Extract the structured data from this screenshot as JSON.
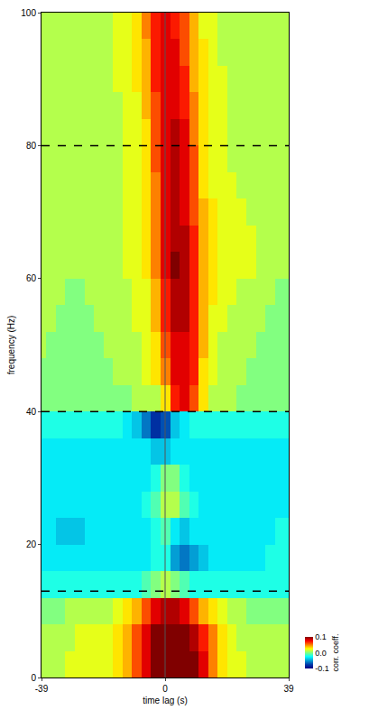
{
  "chart_data": {
    "type": "heatmap",
    "x_label": "time lag (s)",
    "y_label": "frequency (Hz)",
    "xlim": [
      -39,
      39
    ],
    "xticks": [
      -39,
      0,
      39
    ],
    "ylim": [
      0,
      100
    ],
    "yticks": [
      0,
      20,
      40,
      60,
      80,
      100
    ],
    "x": [
      -39,
      -36,
      -33,
      -30,
      -27,
      -24,
      -21,
      -18,
      -15,
      -12,
      -9,
      -6,
      -3,
      0,
      3,
      6,
      9,
      12,
      15,
      18,
      21,
      24,
      27,
      30,
      33,
      36,
      39
    ],
    "y": [
      2,
      6,
      10,
      14,
      18,
      22,
      26,
      30,
      34,
      38,
      42,
      46,
      50,
      54,
      58,
      62,
      66,
      70,
      74,
      78,
      82,
      86,
      90,
      94,
      98
    ],
    "z": [
      [
        0.01,
        0.01,
        0.01,
        0.02,
        0.02,
        0.02,
        0.02,
        0.02,
        0.03,
        0.04,
        0.06,
        0.08,
        0.1,
        0.1,
        0.1,
        0.1,
        0.1,
        0.08,
        0.05,
        0.03,
        0.02,
        0.02,
        0.01,
        0.01,
        0.01,
        0.01,
        0.01
      ],
      [
        0.01,
        0.01,
        0.01,
        0.01,
        0.02,
        0.02,
        0.02,
        0.02,
        0.03,
        0.04,
        0.06,
        0.08,
        0.1,
        0.1,
        0.1,
        0.1,
        0.09,
        0.07,
        0.05,
        0.03,
        0.02,
        0.01,
        0.01,
        0.01,
        0.01,
        0.01,
        0.01
      ],
      [
        0.0,
        0.0,
        0.0,
        0.01,
        0.01,
        0.01,
        0.01,
        0.01,
        0.02,
        0.03,
        0.04,
        0.06,
        0.08,
        0.09,
        0.09,
        0.08,
        0.06,
        0.04,
        0.03,
        0.02,
        0.01,
        0.01,
        0.0,
        0.0,
        0.0,
        0.0,
        0.0
      ],
      [
        -0.02,
        -0.02,
        -0.02,
        -0.02,
        -0.02,
        -0.02,
        -0.02,
        -0.02,
        -0.02,
        -0.02,
        -0.02,
        -0.01,
        0.0,
        0.01,
        0.0,
        -0.01,
        -0.02,
        -0.02,
        -0.02,
        -0.02,
        -0.02,
        -0.02,
        -0.02,
        -0.02,
        -0.02,
        -0.02,
        -0.02
      ],
      [
        -0.03,
        -0.03,
        -0.03,
        -0.03,
        -0.03,
        -0.03,
        -0.03,
        -0.03,
        -0.03,
        -0.03,
        -0.03,
        -0.03,
        -0.02,
        -0.02,
        -0.05,
        -0.06,
        -0.05,
        -0.04,
        -0.03,
        -0.03,
        -0.03,
        -0.03,
        -0.03,
        -0.03,
        -0.02,
        -0.02,
        -0.02
      ],
      [
        -0.03,
        -0.03,
        -0.04,
        -0.04,
        -0.04,
        -0.03,
        -0.03,
        -0.03,
        -0.03,
        -0.03,
        -0.03,
        -0.03,
        -0.02,
        -0.01,
        -0.03,
        -0.04,
        -0.03,
        -0.03,
        -0.03,
        -0.03,
        -0.03,
        -0.03,
        -0.03,
        -0.03,
        -0.03,
        -0.02,
        -0.02
      ],
      [
        -0.03,
        -0.03,
        -0.03,
        -0.03,
        -0.03,
        -0.03,
        -0.03,
        -0.03,
        -0.03,
        -0.03,
        -0.03,
        -0.02,
        -0.01,
        0.01,
        0.01,
        -0.01,
        -0.02,
        -0.03,
        -0.03,
        -0.03,
        -0.03,
        -0.03,
        -0.03,
        -0.03,
        -0.03,
        -0.03,
        -0.03
      ],
      [
        -0.03,
        -0.03,
        -0.03,
        -0.03,
        -0.03,
        -0.03,
        -0.03,
        -0.03,
        -0.03,
        -0.03,
        -0.03,
        -0.03,
        -0.02,
        0.0,
        0.0,
        -0.02,
        -0.03,
        -0.03,
        -0.03,
        -0.03,
        -0.03,
        -0.03,
        -0.03,
        -0.03,
        -0.03,
        -0.03,
        -0.03
      ],
      [
        -0.03,
        -0.03,
        -0.03,
        -0.03,
        -0.03,
        -0.03,
        -0.03,
        -0.03,
        -0.03,
        -0.03,
        -0.03,
        -0.03,
        -0.04,
        -0.04,
        -0.03,
        -0.03,
        -0.03,
        -0.03,
        -0.03,
        -0.03,
        -0.03,
        -0.03,
        -0.03,
        -0.03,
        -0.03,
        -0.03,
        -0.03
      ],
      [
        -0.02,
        -0.02,
        -0.02,
        -0.02,
        -0.02,
        -0.02,
        -0.02,
        -0.02,
        -0.02,
        -0.03,
        -0.04,
        -0.06,
        -0.08,
        -0.07,
        -0.04,
        -0.03,
        -0.02,
        -0.02,
        -0.02,
        -0.02,
        -0.02,
        -0.02,
        -0.02,
        -0.02,
        -0.02,
        -0.02,
        -0.02
      ],
      [
        0.0,
        0.0,
        0.0,
        0.0,
        0.0,
        0.0,
        0.0,
        0.0,
        0.0,
        0.0,
        0.01,
        0.01,
        0.01,
        0.03,
        0.07,
        0.08,
        0.06,
        0.03,
        0.01,
        0.01,
        0.01,
        0.0,
        0.0,
        0.0,
        0.0,
        0.0,
        0.0
      ],
      [
        0.0,
        0.0,
        0.0,
        0.0,
        0.0,
        0.0,
        0.0,
        0.0,
        0.01,
        0.01,
        0.01,
        0.02,
        0.03,
        0.05,
        0.08,
        0.08,
        0.07,
        0.03,
        0.02,
        0.01,
        0.01,
        0.01,
        0.0,
        0.0,
        0.0,
        0.0,
        0.0
      ],
      [
        0.01,
        0.0,
        0.0,
        0.0,
        0.0,
        0.0,
        0.0,
        0.01,
        0.01,
        0.01,
        0.01,
        0.02,
        0.03,
        0.06,
        0.08,
        0.08,
        0.07,
        0.04,
        0.02,
        0.01,
        0.01,
        0.01,
        0.01,
        0.0,
        0.0,
        0.0,
        0.0
      ],
      [
        0.01,
        0.01,
        0.0,
        0.0,
        0.0,
        0.0,
        0.01,
        0.01,
        0.01,
        0.01,
        0.02,
        0.02,
        0.04,
        0.07,
        0.09,
        0.09,
        0.07,
        0.04,
        0.02,
        0.02,
        0.01,
        0.01,
        0.01,
        0.01,
        0.0,
        0.0,
        0.0
      ],
      [
        0.01,
        0.01,
        0.01,
        0.0,
        0.0,
        0.01,
        0.01,
        0.01,
        0.01,
        0.01,
        0.02,
        0.02,
        0.04,
        0.07,
        0.09,
        0.09,
        0.07,
        0.04,
        0.03,
        0.02,
        0.02,
        0.01,
        0.01,
        0.01,
        0.01,
        0.0,
        0.0
      ],
      [
        0.01,
        0.01,
        0.01,
        0.01,
        0.01,
        0.01,
        0.01,
        0.01,
        0.01,
        0.02,
        0.02,
        0.03,
        0.05,
        0.08,
        0.1,
        0.09,
        0.07,
        0.04,
        0.03,
        0.02,
        0.02,
        0.02,
        0.02,
        0.01,
        0.01,
        0.01,
        0.01
      ],
      [
        0.01,
        0.01,
        0.01,
        0.01,
        0.01,
        0.01,
        0.01,
        0.01,
        0.01,
        0.02,
        0.02,
        0.03,
        0.05,
        0.08,
        0.09,
        0.09,
        0.07,
        0.04,
        0.03,
        0.02,
        0.02,
        0.02,
        0.02,
        0.01,
        0.01,
        0.01,
        0.01
      ],
      [
        0.01,
        0.01,
        0.01,
        0.01,
        0.01,
        0.01,
        0.01,
        0.01,
        0.01,
        0.02,
        0.02,
        0.03,
        0.05,
        0.08,
        0.09,
        0.08,
        0.06,
        0.04,
        0.03,
        0.02,
        0.02,
        0.02,
        0.01,
        0.01,
        0.01,
        0.01,
        0.01
      ],
      [
        0.01,
        0.01,
        0.01,
        0.01,
        0.01,
        0.01,
        0.01,
        0.01,
        0.01,
        0.02,
        0.02,
        0.03,
        0.05,
        0.08,
        0.09,
        0.08,
        0.06,
        0.03,
        0.02,
        0.02,
        0.02,
        0.01,
        0.01,
        0.01,
        0.01,
        0.01,
        0.01
      ],
      [
        0.01,
        0.01,
        0.01,
        0.01,
        0.01,
        0.01,
        0.01,
        0.01,
        0.01,
        0.02,
        0.02,
        0.03,
        0.06,
        0.08,
        0.09,
        0.08,
        0.06,
        0.03,
        0.02,
        0.02,
        0.01,
        0.01,
        0.01,
        0.01,
        0.01,
        0.01,
        0.01
      ],
      [
        0.01,
        0.01,
        0.01,
        0.01,
        0.01,
        0.01,
        0.01,
        0.01,
        0.01,
        0.02,
        0.02,
        0.03,
        0.06,
        0.08,
        0.09,
        0.08,
        0.05,
        0.03,
        0.02,
        0.02,
        0.01,
        0.01,
        0.01,
        0.01,
        0.01,
        0.01,
        0.01
      ],
      [
        0.01,
        0.01,
        0.01,
        0.01,
        0.01,
        0.01,
        0.01,
        0.01,
        0.01,
        0.02,
        0.02,
        0.04,
        0.06,
        0.08,
        0.08,
        0.07,
        0.05,
        0.03,
        0.02,
        0.02,
        0.01,
        0.01,
        0.01,
        0.01,
        0.01,
        0.01,
        0.01
      ],
      [
        0.01,
        0.01,
        0.01,
        0.01,
        0.01,
        0.01,
        0.01,
        0.01,
        0.02,
        0.02,
        0.03,
        0.04,
        0.07,
        0.08,
        0.08,
        0.07,
        0.04,
        0.03,
        0.02,
        0.02,
        0.01,
        0.01,
        0.01,
        0.01,
        0.01,
        0.01,
        0.01
      ],
      [
        0.01,
        0.01,
        0.01,
        0.01,
        0.01,
        0.01,
        0.01,
        0.01,
        0.02,
        0.02,
        0.03,
        0.04,
        0.07,
        0.08,
        0.08,
        0.06,
        0.04,
        0.03,
        0.02,
        0.01,
        0.01,
        0.01,
        0.01,
        0.01,
        0.01,
        0.01,
        0.01
      ],
      [
        0.01,
        0.01,
        0.01,
        0.01,
        0.01,
        0.01,
        0.01,
        0.01,
        0.02,
        0.02,
        0.03,
        0.05,
        0.07,
        0.08,
        0.07,
        0.06,
        0.04,
        0.02,
        0.02,
        0.01,
        0.01,
        0.01,
        0.01,
        0.01,
        0.01,
        0.01,
        0.01
      ]
    ],
    "colorbar_title": "corr. coeff.",
    "zlim": [
      -0.1,
      0.1
    ],
    "zticks": [
      0.1,
      {
        "value": 0.0,
        "label": "0.0"
      },
      -0.1
    ],
    "reference_lines": {
      "y": [
        13,
        40,
        80
      ],
      "x": [
        0
      ]
    }
  }
}
